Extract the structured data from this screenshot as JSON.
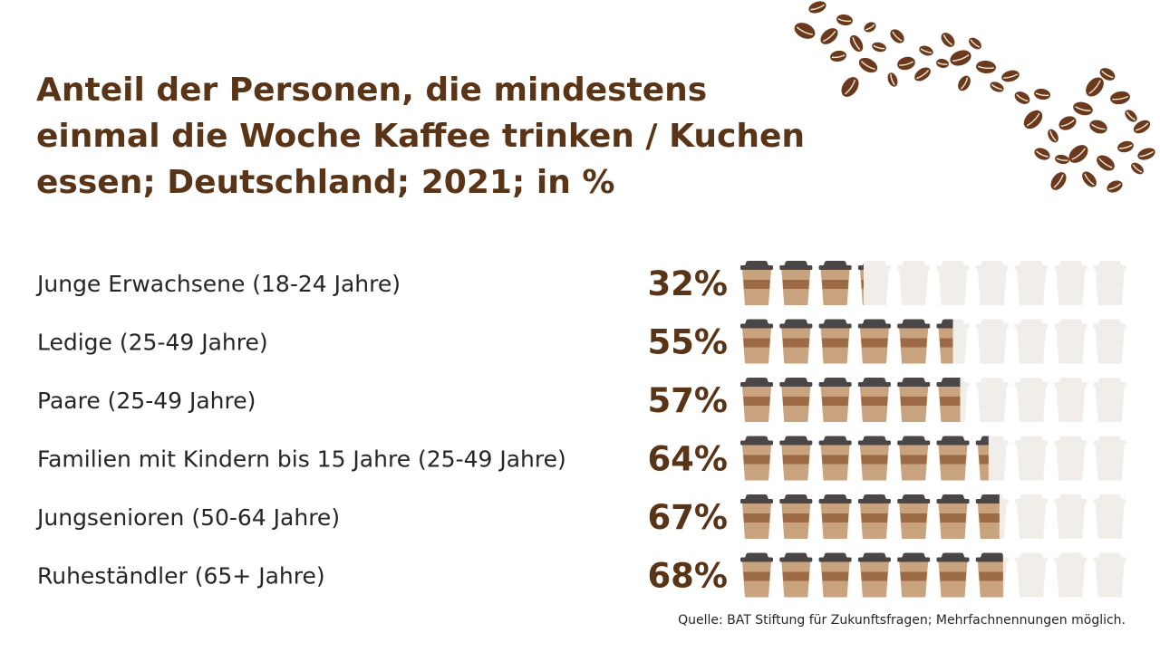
{
  "title": "Anteil der Personen, die mindestens einmal die Woche Kaffee trinken / Kuchen essen; Deutschland; 2021; in %",
  "source": "Quelle: BAT Stiftung für Zukunftsfragen; Mehrfachnennungen möglich.",
  "colors": {
    "title": "#5a3417",
    "cup_lid": "#4a4546",
    "cup_body": "#c9a27e",
    "cup_sleeve": "#9c6b45",
    "cup_empty": "#f1ede9",
    "bean": "#6b3a1c"
  },
  "chart_data": {
    "type": "pictogram",
    "unit": "%",
    "icon": "coffee-cup-icon",
    "icons_per_row": 10,
    "max": 100,
    "categories": [
      "Junge Erwachsene (18-24 Jahre)",
      "Ledige (25-49 Jahre)",
      "Paare (25-49 Jahre)",
      "Familien mit Kindern bis 15 Jahre (25-49 Jahre)",
      "Jungsenioren (50-64 Jahre)",
      "Ruheständler (65+ Jahre)"
    ],
    "values": [
      32,
      55,
      57,
      64,
      67,
      68
    ],
    "value_labels": [
      "32%",
      "55%",
      "57%",
      "64%",
      "67%",
      "68%"
    ]
  }
}
